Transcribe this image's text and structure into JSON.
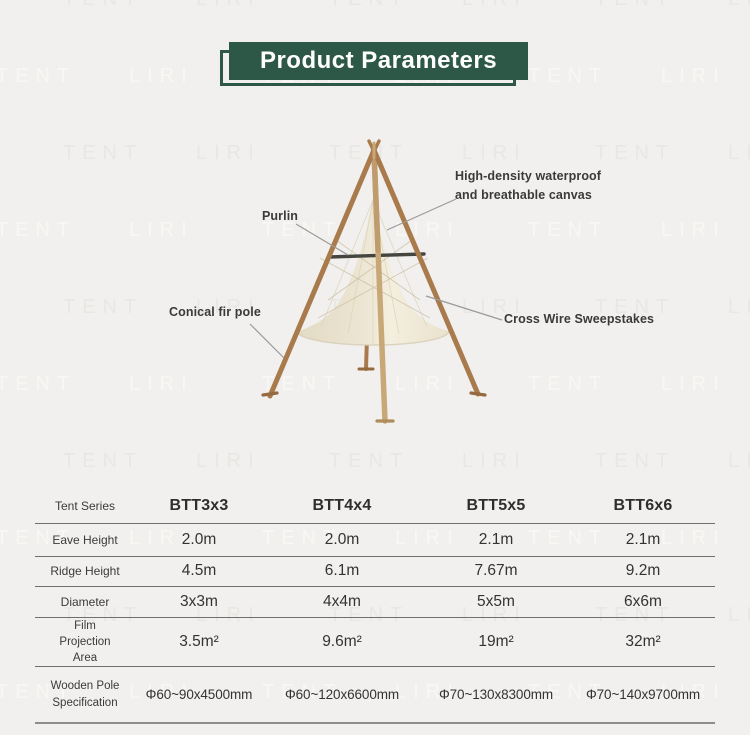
{
  "watermark": {
    "words": [
      "LIRI",
      "TENT"
    ]
  },
  "banner": {
    "title": "Product Parameters",
    "accent_green": "#2d5747"
  },
  "diagram": {
    "labels": {
      "purlin": "Purlin",
      "canvas": "High-density waterproof and breathable canvas",
      "pole": "Conical fir pole",
      "wire": "Cross Wire Sweepstakes"
    },
    "colors": {
      "pole_wood": "#a97a4c",
      "center_pole_wood": "#c9a878",
      "canvas_cream": "#eee7d5",
      "purlin_dark": "#45453f"
    }
  },
  "table": {
    "header_label": "Tent Series",
    "columns": [
      "BTT3x3",
      "BTT4x4",
      "BTT5x5",
      "BTT6x6"
    ],
    "rows": [
      {
        "label": "Eave Height",
        "values": [
          "2.0m",
          "2.0m",
          "2.1m",
          "2.1m"
        ]
      },
      {
        "label": "Ridge Height",
        "values": [
          "4.5m",
          "6.1m",
          "7.67m",
          "9.2m"
        ]
      },
      {
        "label": "Diameter",
        "values": [
          "3x3m",
          "4x4m",
          "5x5m",
          "6x6m"
        ]
      },
      {
        "label": "Film Projection Area",
        "values": [
          "3.5m²",
          "9.6m²",
          "19m²",
          "32m²"
        ]
      },
      {
        "label": "Wooden Pole Specification",
        "values": [
          "Φ60~90x4500mm",
          "Φ60~120x6600mm",
          "Φ70~130x8300mm",
          "Φ70~140x9700mm"
        ]
      }
    ]
  }
}
